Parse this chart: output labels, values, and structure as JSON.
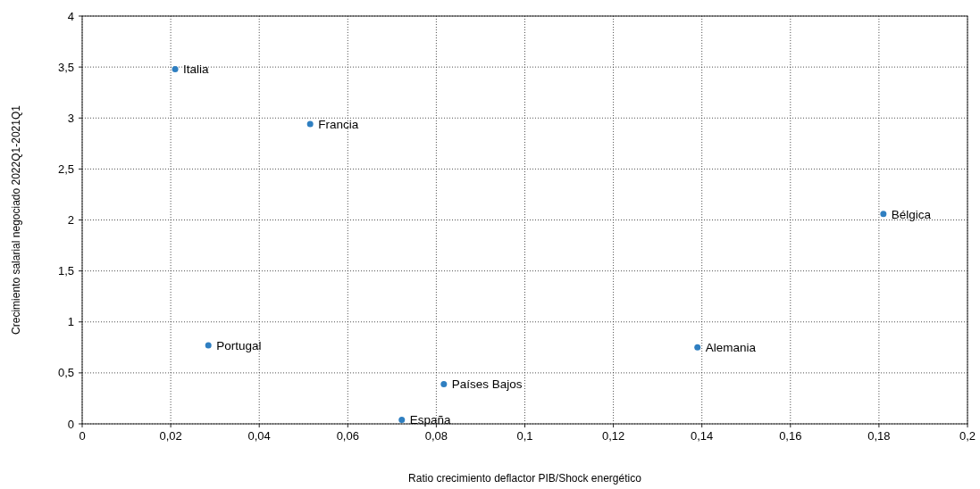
{
  "chart_data": {
    "type": "scatter",
    "xlabel": "Ratio crecimiento deflactor PIB/Shock energético",
    "ylabel": "Crecimiento salarial negociado 2022Q1-2021Q1",
    "series": [
      {
        "color": "#2f7fc1",
        "x": [
          0.021,
          0.0515,
          0.181,
          0.0285,
          0.139,
          0.0817,
          0.0722
        ],
        "values": [
          3.48,
          2.94,
          2.06,
          0.77,
          0.75,
          0.39,
          0.04
        ]
      }
    ],
    "annotations": [
      {
        "text": "Italia",
        "x": 0.021,
        "y": 3.48
      },
      {
        "text": "Francia",
        "x": 0.0515,
        "y": 2.94
      },
      {
        "text": "Bélgica",
        "x": 0.181,
        "y": 2.06
      },
      {
        "text": "Portugal",
        "x": 0.0285,
        "y": 0.77
      },
      {
        "text": "Alemania",
        "x": 0.139,
        "y": 0.75
      },
      {
        "text": "Países Bajos",
        "x": 0.0817,
        "y": 0.39
      },
      {
        "text": "España",
        "x": 0.0722,
        "y": 0.04
      }
    ],
    "xlim": [
      0,
      0.2
    ],
    "ylim": [
      0,
      4
    ],
    "xticks": [
      0,
      {
        "value": 0.02,
        "label": "0,02"
      },
      {
        "value": 0.04,
        "label": "0,04"
      },
      {
        "value": 0.06,
        "label": "0,06"
      },
      {
        "value": 0.08,
        "label": "0,08"
      },
      {
        "value": 0.1,
        "label": "0,1"
      },
      {
        "value": 0.12,
        "label": "0,12"
      },
      {
        "value": 0.14,
        "label": "0,14"
      },
      {
        "value": 0.16,
        "label": "0,16"
      },
      {
        "value": 0.18,
        "label": "0,18"
      },
      {
        "value": 0.2,
        "label": "0,2"
      }
    ],
    "yticks": [
      0,
      {
        "value": 0.5,
        "label": "0,5"
      },
      1,
      {
        "value": 1.5,
        "label": "1,5"
      },
      2,
      {
        "value": 2.5,
        "label": "2,5"
      },
      3,
      {
        "value": 3.5,
        "label": "3,5"
      },
      4
    ],
    "grid": true,
    "marker": "circle"
  }
}
